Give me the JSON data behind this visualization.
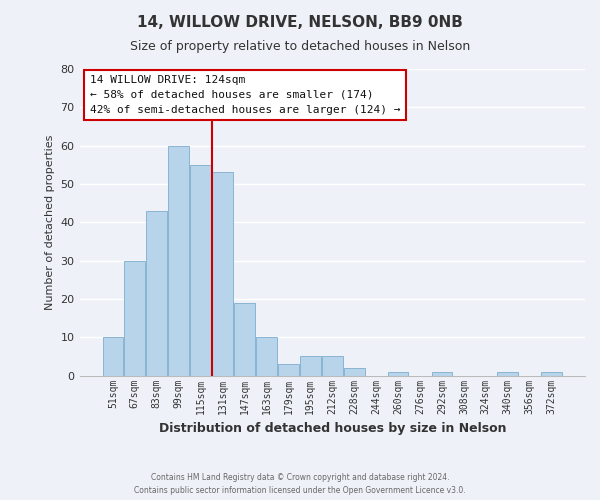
{
  "title": "14, WILLOW DRIVE, NELSON, BB9 0NB",
  "subtitle": "Size of property relative to detached houses in Nelson",
  "xlabel": "Distribution of detached houses by size in Nelson",
  "ylabel": "Number of detached properties",
  "bar_color": "#b8d4ea",
  "bar_edge_color": "#8ab4d4",
  "background_color": "#eef2f8",
  "grid_color": "#ffffff",
  "bin_labels": [
    "51sqm",
    "67sqm",
    "83sqm",
    "99sqm",
    "115sqm",
    "131sqm",
    "147sqm",
    "163sqm",
    "179sqm",
    "195sqm",
    "212sqm",
    "228sqm",
    "244sqm",
    "260sqm",
    "276sqm",
    "292sqm",
    "308sqm",
    "324sqm",
    "340sqm",
    "356sqm",
    "372sqm"
  ],
  "bar_heights": [
    10,
    30,
    43,
    60,
    55,
    53,
    19,
    10,
    3,
    5,
    5,
    2,
    0,
    1,
    0,
    1,
    0,
    0,
    1,
    0,
    1
  ],
  "ylim": [
    0,
    80
  ],
  "yticks": [
    0,
    10,
    20,
    30,
    40,
    50,
    60,
    70,
    80
  ],
  "vline_color": "#cc0000",
  "annotation_title": "14 WILLOW DRIVE: 124sqm",
  "annotation_line1": "← 58% of detached houses are smaller (174)",
  "annotation_line2": "42% of semi-detached houses are larger (124) →",
  "annotation_box_color": "#ffffff",
  "annotation_box_edge_color": "#cc0000",
  "footnote1": "Contains HM Land Registry data © Crown copyright and database right 2024.",
  "footnote2": "Contains public sector information licensed under the Open Government Licence v3.0."
}
